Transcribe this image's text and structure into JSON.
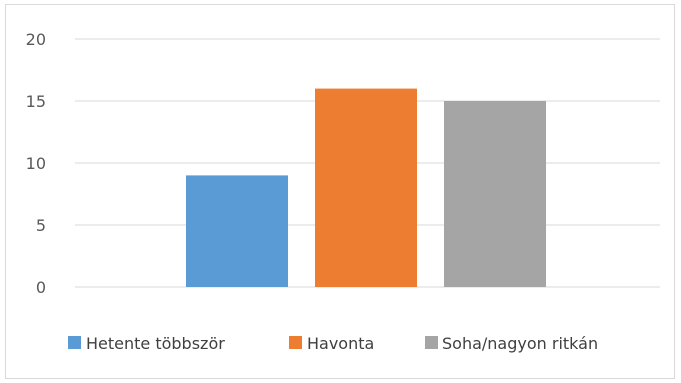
{
  "chart_data": {
    "type": "bar",
    "title": "",
    "xlabel": "",
    "ylabel": "",
    "ylim": [
      0,
      20
    ],
    "yticks": [
      0,
      5,
      10,
      15,
      20
    ],
    "grid": true,
    "legend_position": "bottom",
    "series": [
      {
        "name": "Hetente többször",
        "value": 9,
        "color": "#5b9bd5"
      },
      {
        "name": "Havonta",
        "value": 16,
        "color": "#ed7d31"
      },
      {
        "name": "Soha/nagyon ritkán",
        "value": 15,
        "color": "#a5a5a5"
      }
    ]
  }
}
